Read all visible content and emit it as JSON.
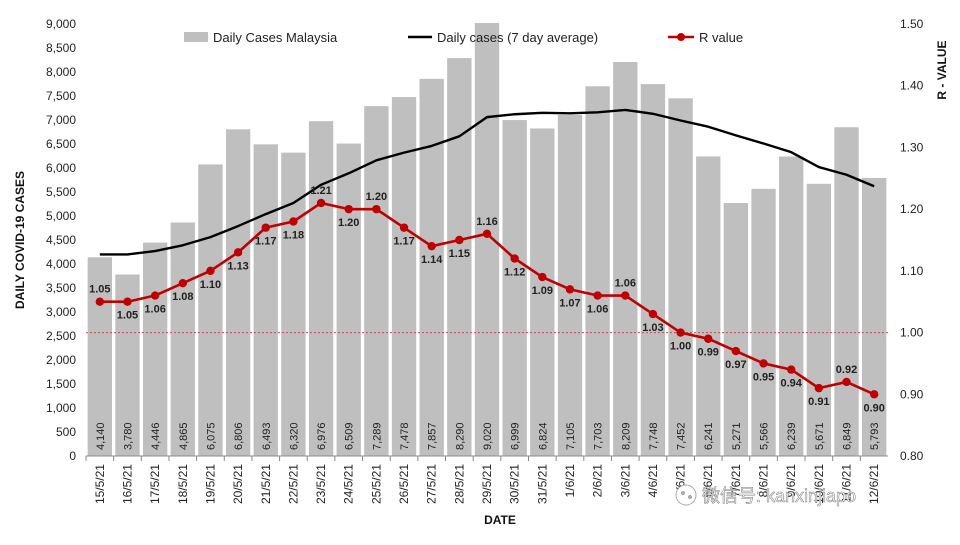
{
  "chart_data": {
    "type": "bar",
    "title": "",
    "xlabel": "DATE",
    "ylabel": "DAILY COVID-19 CASES",
    "y2label": "R - VALUE",
    "ylim": [
      0,
      9000
    ],
    "y_ticks": [
      "0",
      "500",
      "1,000",
      "1,500",
      "2,000",
      "2,500",
      "3,000",
      "3,500",
      "4,000",
      "4,500",
      "5,000",
      "5,500",
      "6,000",
      "6,500",
      "7,000",
      "7,500",
      "8,000",
      "8,500",
      "9,000"
    ],
    "y2lim": [
      0.8,
      1.5
    ],
    "y2_ticks": [
      "0.80",
      "0.90",
      "1.00",
      "1.10",
      "1.20",
      "1.30",
      "1.40",
      "1.50"
    ],
    "reference_line_r": 1.0,
    "legend_position": "top",
    "categories": [
      "15/5/21",
      "16/5/21",
      "17/5/21",
      "18/5/21",
      "19/5/21",
      "20/5/21",
      "21/5/21",
      "22/5/21",
      "23/5/21",
      "24/5/21",
      "25/5/21",
      "26/5/21",
      "27/5/21",
      "28/5/21",
      "29/5/21",
      "30/5/21",
      "31/5/21",
      "1/6/21",
      "2/6/21",
      "3/6/21",
      "4/6/21",
      "5/6/21",
      "6/6/21",
      "7/6/21",
      "8/6/21",
      "9/6/21",
      "10/6/21",
      "11/6/21",
      "12/6/21"
    ],
    "series": [
      {
        "name": "Daily Cases Malaysia",
        "type": "bar",
        "axis": "left",
        "color": "#bfbfbf",
        "values": [
          4140,
          3780,
          4446,
          4865,
          6075,
          6806,
          6493,
          6320,
          6976,
          6509,
          7289,
          7478,
          7857,
          8290,
          9020,
          6999,
          6824,
          7105,
          7703,
          8209,
          7748,
          7452,
          6241,
          5271,
          5566,
          6239,
          5671,
          6849,
          5793
        ],
        "labels": [
          "4,140",
          "3,780",
          "4,446",
          "4,865",
          "6,075",
          "6,806",
          "6,493",
          "6,320",
          "6,976",
          "6,509",
          "7,289",
          "7,478",
          "7,857",
          "8,290",
          "9,020",
          "6,999",
          "6,824",
          "7,105",
          "7,703",
          "8,209",
          "7,748",
          "7,452",
          "6,241",
          "5,271",
          "5,566",
          "6,239",
          "5,671",
          "6,849",
          "5,793"
        ]
      },
      {
        "name": "Daily cases (7 day average)",
        "type": "line",
        "axis": "left",
        "color": "#000000",
        "values": [
          4200,
          4200,
          4270,
          4390,
          4560,
          4790,
          5040,
          5270,
          5650,
          5890,
          6160,
          6320,
          6460,
          6660,
          7060,
          7120,
          7150,
          7140,
          7160,
          7210,
          7130,
          6990,
          6860,
          6680,
          6510,
          6330,
          6020,
          5860,
          5620
        ]
      },
      {
        "name": "R value",
        "type": "line",
        "axis": "right",
        "color": "#c00000",
        "values": [
          1.05,
          1.05,
          1.06,
          1.08,
          1.1,
          1.13,
          1.17,
          1.18,
          1.21,
          1.2,
          1.2,
          1.17,
          1.14,
          1.15,
          1.16,
          1.12,
          1.09,
          1.07,
          1.06,
          1.06,
          1.03,
          1.0,
          0.99,
          0.97,
          0.95,
          0.94,
          0.91,
          0.92,
          0.9
        ],
        "labels": [
          "1.05",
          "1.05",
          "1.06",
          "1.08",
          "1.10",
          "1.13",
          "1.17",
          "1.18",
          "1.21",
          "1.20",
          "1.20",
          "1.17",
          "1.14",
          "1.15",
          "1.16",
          "1.12",
          "1.09",
          "1.07",
          "1.06",
          "1.06",
          "1.03",
          "1.00",
          "0.99",
          "0.97",
          "0.95",
          "0.94",
          "0.91",
          "0.92",
          "0.90"
        ]
      }
    ]
  },
  "watermark": "微信号: kanxinjiapo"
}
